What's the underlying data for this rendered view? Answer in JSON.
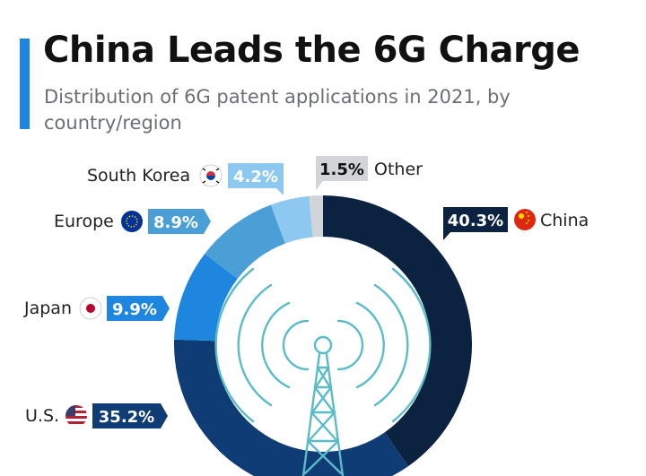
{
  "header": {
    "title": "China Leads the 6G Charge",
    "subtitle": "Distribution of 6G patent applications in 2021, by country/region"
  },
  "colors": {
    "accent": "#1f86e0"
  },
  "chart_data": {
    "type": "pie",
    "variant": "donut",
    "title": "China Leads the 6G Charge",
    "subtitle": "Distribution of 6G patent applications in 2021, by country/region",
    "unit": "%",
    "center_icon": "radio-tower-icon",
    "slices": [
      {
        "label": "China",
        "value": 40.3,
        "display": "40.3%",
        "color": "#0b2341",
        "flag": "china-flag-icon"
      },
      {
        "label": "U.S.",
        "value": 35.2,
        "display": "35.2%",
        "color": "#0f3c74",
        "flag": "usa-flag-icon"
      },
      {
        "label": "Japan",
        "value": 9.9,
        "display": "9.9%",
        "color": "#1f86e0",
        "flag": "japan-flag-icon"
      },
      {
        "label": "Europe",
        "value": 8.9,
        "display": "8.9%",
        "color": "#4a9fd6",
        "flag": "eu-flag-icon"
      },
      {
        "label": "South Korea",
        "value": 4.2,
        "display": "4.2%",
        "color": "#8cc8f0",
        "flag": "south-korea-flag-icon"
      },
      {
        "label": "Other",
        "value": 1.5,
        "display": "1.5%",
        "color": "#d2d4d7",
        "flag": ""
      }
    ]
  }
}
